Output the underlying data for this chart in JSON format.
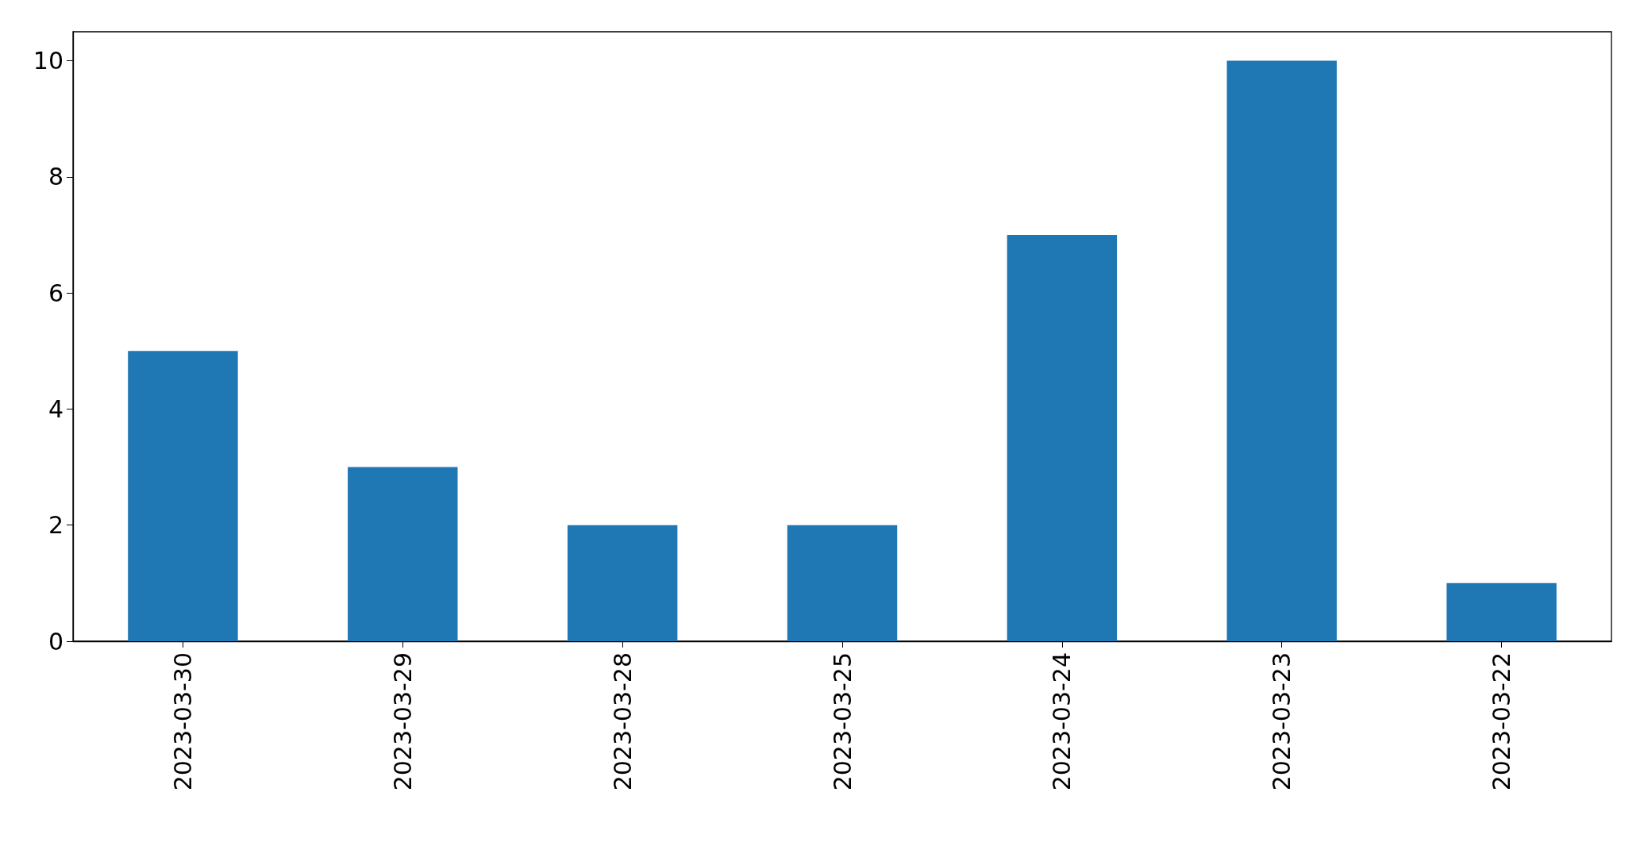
{
  "chart_data": {
    "type": "bar",
    "categories": [
      "2023-03-30",
      "2023-03-29",
      "2023-03-28",
      "2023-03-25",
      "2023-03-24",
      "2023-03-23",
      "2023-03-22"
    ],
    "values": [
      5,
      3,
      2,
      2,
      7,
      10,
      1
    ],
    "color": "#1f77b4",
    "ylim": [
      0,
      10.5
    ],
    "yticks": [
      0,
      2,
      4,
      6,
      8,
      10
    ]
  }
}
